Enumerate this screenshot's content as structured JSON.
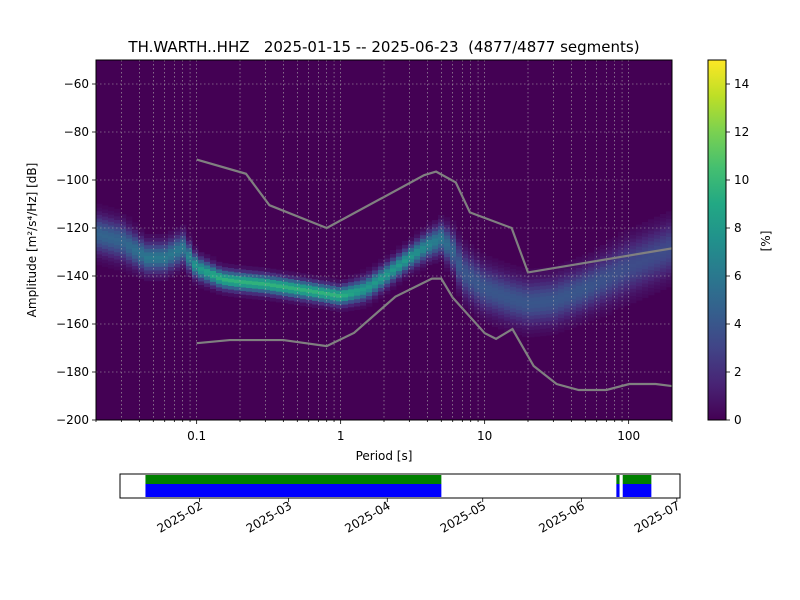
{
  "chart_data": [
    {
      "type": "heatmap",
      "title": "TH.WARTH..HHZ   2025-01-15 -- 2025-06-23  (4877/4877 segments)",
      "xlabel": "Period [s]",
      "ylabel": "Amplitude [m²/s⁴/Hz] [dB]",
      "x_scale": "log",
      "xlim": [
        0.02,
        200
      ],
      "ylim": [
        -200,
        -50
      ],
      "x_ticks": [
        0.1,
        1,
        10,
        100
      ],
      "x_tick_labels": [
        "0.1",
        "1",
        "10",
        "100"
      ],
      "y_ticks": [
        -200,
        -180,
        -160,
        -140,
        -120,
        -100,
        -80,
        -60
      ],
      "y_tick_labels": [
        "−200",
        "−180",
        "−160",
        "−140",
        "−120",
        "−100",
        "−80",
        "−60"
      ],
      "grid": "dotted",
      "colormap": "viridis",
      "colorbar": {
        "label": "[%]",
        "range": [
          0,
          15
        ],
        "ticks": [
          0,
          2,
          4,
          6,
          8,
          10,
          12,
          14
        ],
        "tick_labels": [
          "0",
          "2",
          "4",
          "6",
          "8",
          "10",
          "12",
          "14"
        ]
      },
      "psd_mode": {
        "period": [
          0.02,
          0.03,
          0.045,
          0.06,
          0.08,
          0.1,
          0.15,
          0.2,
          0.3,
          0.5,
          0.8,
          1.0,
          1.5,
          2.0,
          3.0,
          4.0,
          5.0,
          6.0,
          7.0,
          10,
          15,
          20,
          30,
          50,
          100,
          200
        ],
        "db": [
          -123,
          -126,
          -133,
          -133,
          -129,
          -137,
          -142,
          -143,
          -144,
          -146,
          -148,
          -149,
          -146,
          -141,
          -133,
          -128,
          -125,
          -130,
          -139,
          -146,
          -150,
          -152,
          -151,
          -146,
          -137,
          -129
        ],
        "spread_db": [
          5,
          5,
          4,
          4,
          4,
          3,
          2.5,
          2.5,
          2.5,
          2.5,
          2.5,
          2.5,
          3,
          3,
          3,
          3.5,
          4,
          5,
          6,
          6,
          6,
          6,
          6,
          6,
          7,
          7
        ]
      },
      "noise_models": {
        "high": {
          "period": [
            0.1,
            0.22,
            0.32,
            0.8,
            3.8,
            4.6,
            6.3,
            7.9,
            15.4,
            20,
            354.8
          ],
          "db": [
            -91.5,
            -97.4,
            -110.5,
            -120,
            -98,
            -96.5,
            -101,
            -113.5,
            -120,
            -138.5,
            -126
          ]
        },
        "low": {
          "period": [
            0.1,
            0.17,
            0.4,
            0.8,
            1.24,
            2.4,
            4.3,
            5.0,
            6.0,
            10,
            12,
            15.6,
            21.9,
            31.6,
            45,
            70,
            101,
            154,
            328
          ],
          "db": [
            -168,
            -166.7,
            -166.7,
            -169.2,
            -163.7,
            -148.6,
            -141.1,
            -141.1,
            -149,
            -163.8,
            -166.2,
            -162.1,
            -177.5,
            -185,
            -187.5,
            -187.5,
            -185,
            -185,
            -187.5
          ]
        }
      }
    },
    {
      "type": "timeline",
      "x_ticks": [
        "2025-02",
        "2025-03",
        "2025-04",
        "2025-05",
        "2025-06",
        "2025-07"
      ],
      "xlim": [
        "2025-01-07",
        "2025-07-02"
      ],
      "data_available": [
        [
          "2025-01-15",
          "2025-04-18"
        ],
        [
          "2025-06-12",
          "2025-06-13"
        ],
        [
          "2025-06-14",
          "2025-06-23"
        ]
      ],
      "psd_used": [
        [
          "2025-01-15",
          "2025-04-18"
        ],
        [
          "2025-06-12",
          "2025-06-13"
        ],
        [
          "2025-06-14",
          "2025-06-23"
        ]
      ],
      "colors": {
        "data_available": "#008000",
        "psd_used": "#0000ff"
      }
    }
  ]
}
